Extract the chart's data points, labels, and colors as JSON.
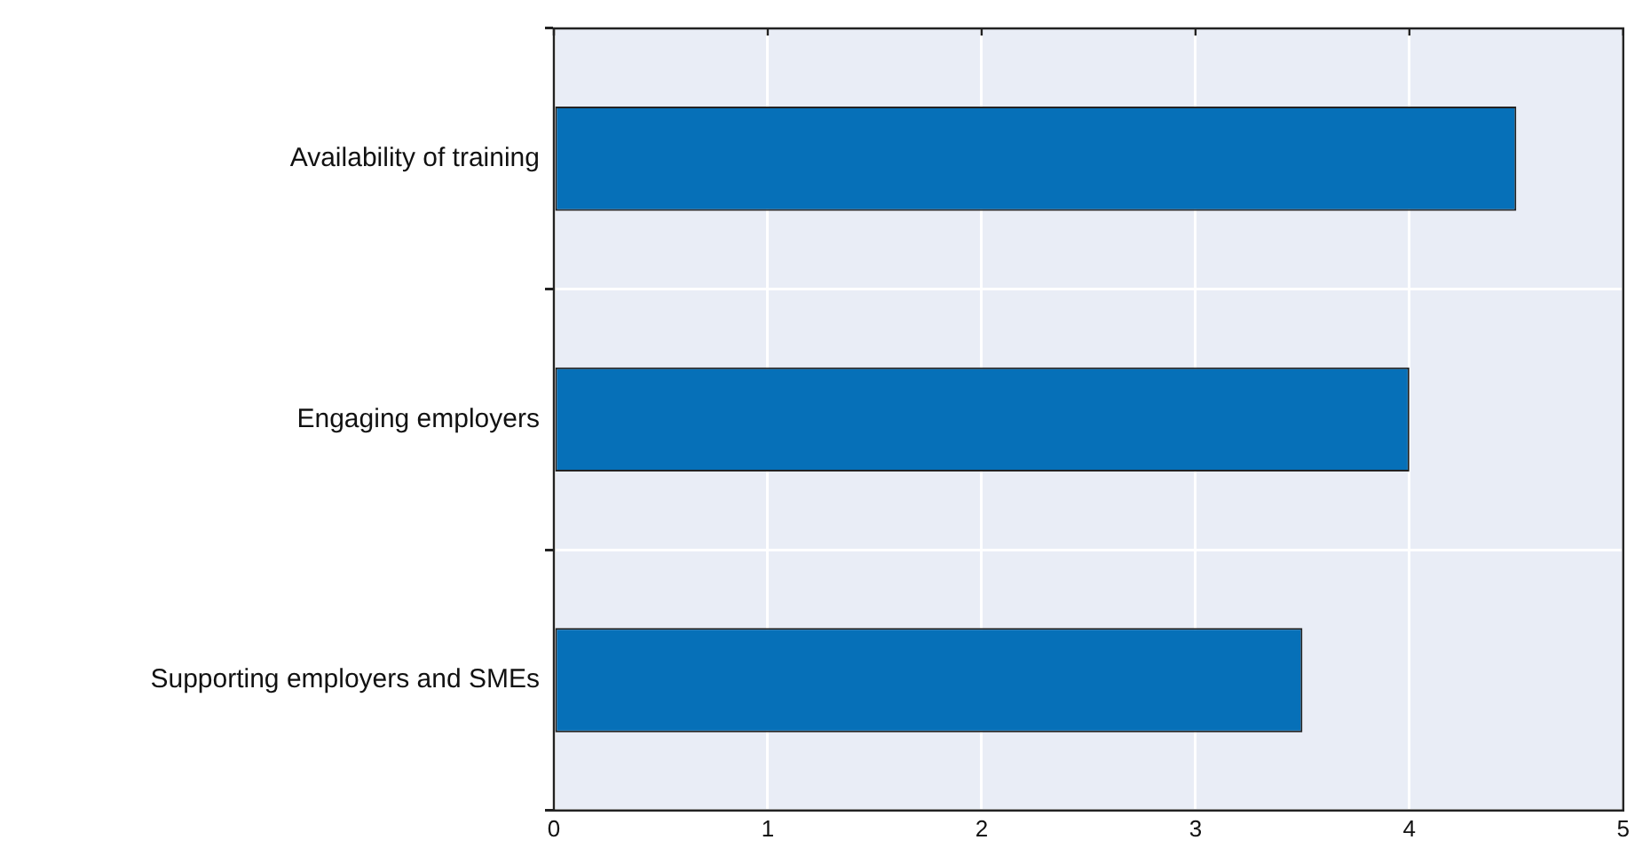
{
  "chart_data": {
    "type": "bar",
    "orientation": "horizontal",
    "categories": [
      "Availability of training",
      "Engaging employers",
      "Supporting employers and SMEs"
    ],
    "values": [
      4.5,
      4,
      3.5
    ],
    "color": "#0670b8",
    "xlim": [
      0,
      5
    ],
    "xticks": [
      0,
      1,
      2,
      3,
      4,
      5
    ],
    "grid": true
  }
}
